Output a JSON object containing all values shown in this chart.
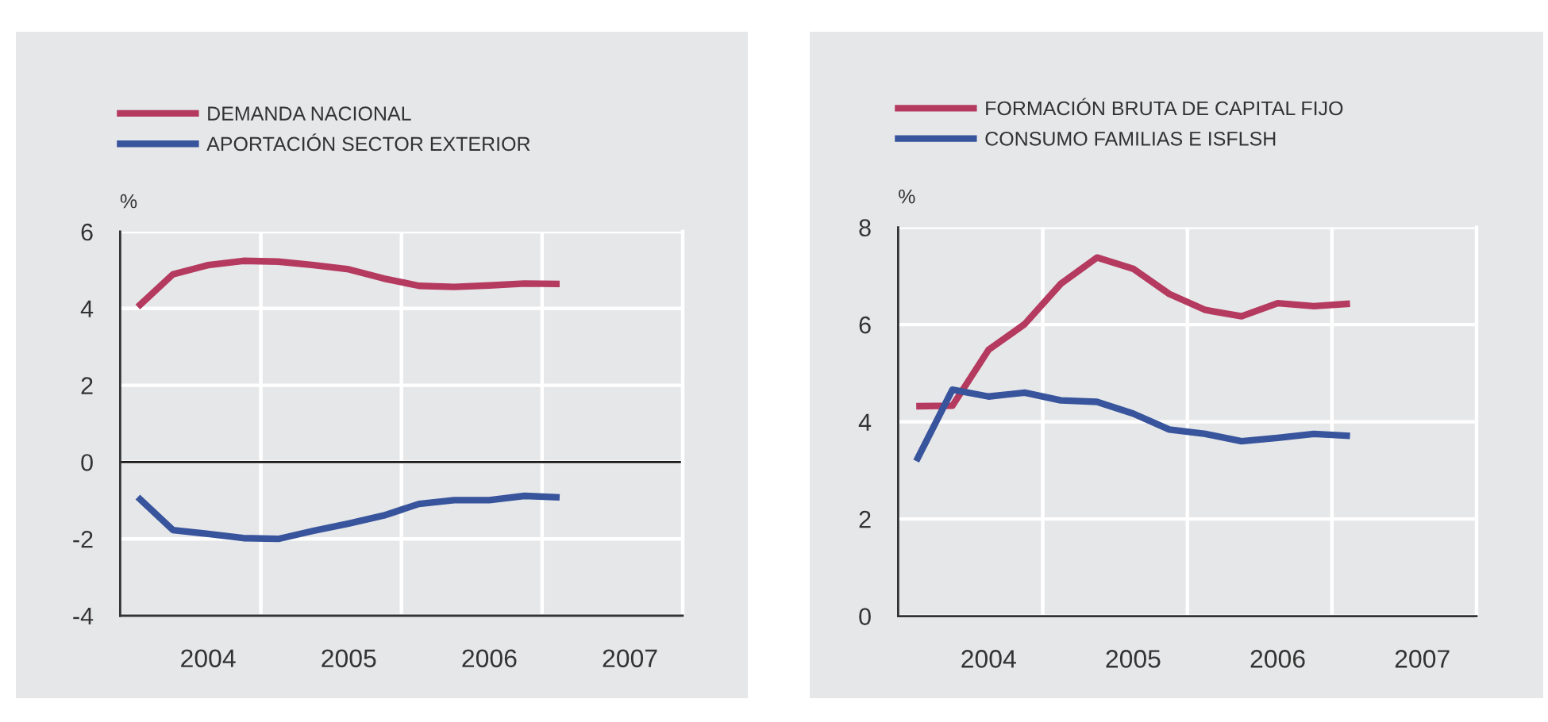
{
  "chart_data": [
    {
      "type": "line",
      "ylabel": "%",
      "x": [
        2003.5,
        2003.75,
        2004.0,
        2004.25,
        2004.5,
        2004.75,
        2005.0,
        2005.25,
        2005.5,
        2005.75,
        2006.0,
        2006.25,
        2006.5
      ],
      "series": [
        {
          "name": "DEMANDA NACIONAL",
          "color": "#b53a5f",
          "values": [
            4.04,
            4.89,
            5.13,
            5.24,
            5.22,
            5.13,
            5.02,
            4.78,
            4.59,
            4.56,
            4.6,
            4.65,
            4.64
          ]
        },
        {
          "name": "APORTACIÓN SECTOR EXTERIOR",
          "color": "#38549c",
          "values": [
            -0.91,
            -1.77,
            -1.87,
            -1.98,
            -2.0,
            -1.79,
            -1.6,
            -1.39,
            -1.09,
            -0.99,
            -0.99,
            -0.88,
            -0.92
          ]
        }
      ],
      "xlim": [
        2003.375,
        2007.375
      ],
      "xticks": [
        2004,
        2005,
        2006,
        2007
      ],
      "ylim": [
        -4,
        6
      ],
      "yticks": [
        -4,
        -2,
        0,
        2,
        4,
        6
      ],
      "grid": "y",
      "legend": "top left",
      "marker": "none",
      "line_style": "solid",
      "ref_lines": [
        {
          "axis": "y",
          "value": 0,
          "color": "#1a1a1a"
        },
        {
          "axis": "x",
          "value": 2004.375,
          "color": "#ffffff"
        },
        {
          "axis": "x",
          "value": 2005.375,
          "color": "#ffffff"
        },
        {
          "axis": "x",
          "value": 2006.375,
          "color": "#ffffff"
        }
      ]
    },
    {
      "type": "line",
      "ylabel": "%",
      "x": [
        2003.5,
        2003.75,
        2004.0,
        2004.25,
        2004.5,
        2004.75,
        2005.0,
        2005.25,
        2005.5,
        2005.75,
        2006.0,
        2006.25,
        2006.5
      ],
      "series": [
        {
          "name": "FORMACIÓN BRUTA DE CAPITAL FIJO",
          "color": "#b53a5f",
          "values": [
            4.32,
            4.33,
            5.48,
            6.01,
            6.84,
            7.38,
            7.15,
            6.63,
            6.3,
            6.17,
            6.44,
            6.38,
            6.43
          ]
        },
        {
          "name": "CONSUMO FAMILIAS E ISFLSH",
          "color": "#38549c",
          "values": [
            3.19,
            4.66,
            4.52,
            4.6,
            4.44,
            4.41,
            4.17,
            3.84,
            3.75,
            3.6,
            3.67,
            3.75,
            3.71
          ]
        }
      ],
      "xlim": [
        2003.375,
        2007.375
      ],
      "xticks": [
        2004,
        2005,
        2006,
        2007
      ],
      "ylim": [
        0,
        8
      ],
      "yticks": [
        0,
        2,
        4,
        6,
        8
      ],
      "grid": "y",
      "legend": "top left",
      "marker": "none",
      "line_style": "solid",
      "ref_lines": [
        {
          "axis": "x",
          "value": 2004.375,
          "color": "#ffffff"
        },
        {
          "axis": "x",
          "value": 2005.375,
          "color": "#ffffff"
        },
        {
          "axis": "x",
          "value": 2006.375,
          "color": "#ffffff"
        }
      ]
    }
  ]
}
